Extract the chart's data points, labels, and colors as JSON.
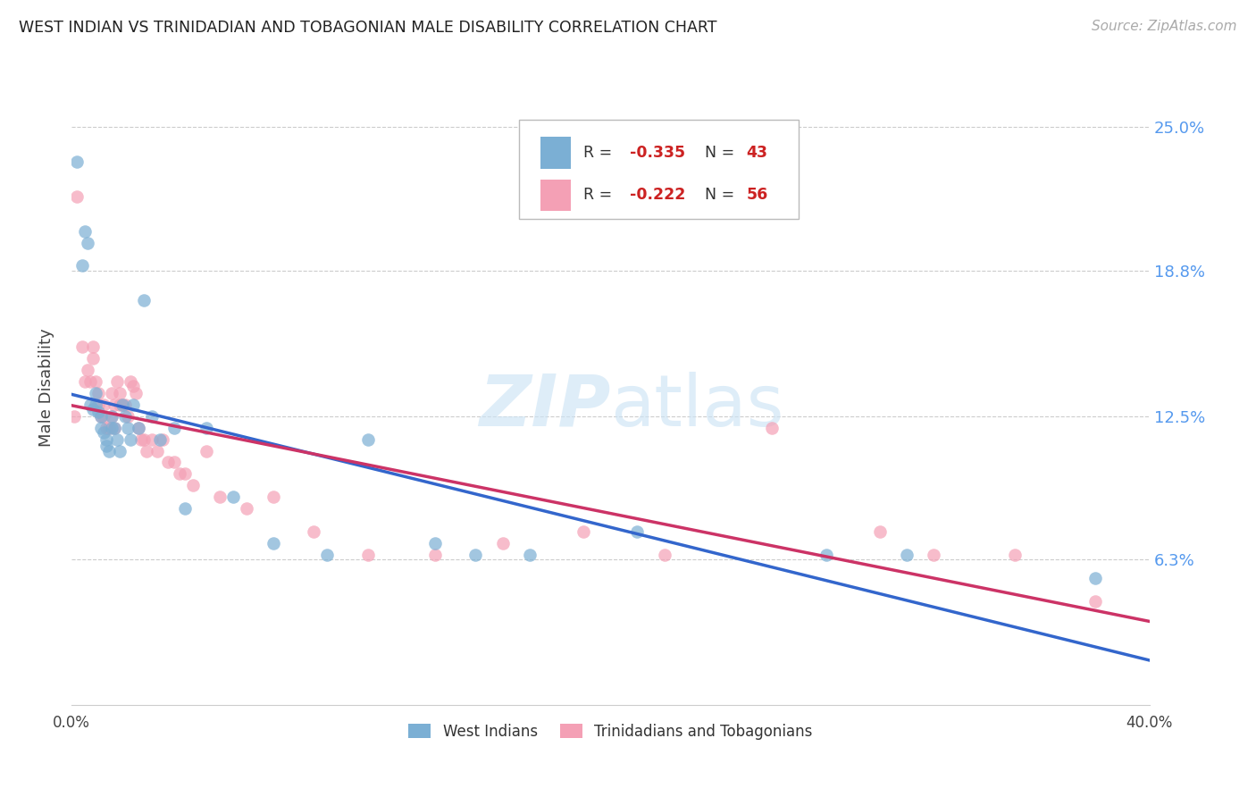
{
  "title": "WEST INDIAN VS TRINIDADIAN AND TOBAGONIAN MALE DISABILITY CORRELATION CHART",
  "source": "Source: ZipAtlas.com",
  "ylabel": "Male Disability",
  "right_yticks": [
    "25.0%",
    "18.8%",
    "12.5%",
    "6.3%"
  ],
  "right_ytick_vals": [
    0.25,
    0.188,
    0.125,
    0.063
  ],
  "xmin": 0.0,
  "xmax": 0.4,
  "ymin": 0.0,
  "ymax": 0.275,
  "west_indians_R": "-0.335",
  "west_indians_N": "43",
  "trini_R": "-0.222",
  "trini_N": "56",
  "blue_color": "#7bafd4",
  "pink_color": "#f4a0b5",
  "blue_line_color": "#3366cc",
  "pink_line_color": "#cc3366",
  "west_indians_x": [
    0.002,
    0.004,
    0.005,
    0.006,
    0.007,
    0.008,
    0.009,
    0.009,
    0.01,
    0.011,
    0.011,
    0.012,
    0.013,
    0.013,
    0.014,
    0.015,
    0.015,
    0.016,
    0.017,
    0.018,
    0.019,
    0.02,
    0.021,
    0.022,
    0.023,
    0.025,
    0.027,
    0.03,
    0.033,
    0.038,
    0.042,
    0.05,
    0.06,
    0.075,
    0.095,
    0.11,
    0.135,
    0.15,
    0.17,
    0.21,
    0.28,
    0.31,
    0.38
  ],
  "west_indians_y": [
    0.235,
    0.19,
    0.205,
    0.2,
    0.13,
    0.128,
    0.135,
    0.13,
    0.127,
    0.125,
    0.12,
    0.118,
    0.115,
    0.112,
    0.11,
    0.125,
    0.12,
    0.12,
    0.115,
    0.11,
    0.13,
    0.125,
    0.12,
    0.115,
    0.13,
    0.12,
    0.175,
    0.125,
    0.115,
    0.12,
    0.085,
    0.12,
    0.09,
    0.07,
    0.065,
    0.115,
    0.07,
    0.065,
    0.065,
    0.075,
    0.065,
    0.065,
    0.055
  ],
  "trini_x": [
    0.001,
    0.002,
    0.004,
    0.005,
    0.006,
    0.007,
    0.008,
    0.008,
    0.009,
    0.01,
    0.01,
    0.011,
    0.012,
    0.012,
    0.013,
    0.014,
    0.015,
    0.015,
    0.016,
    0.016,
    0.017,
    0.018,
    0.018,
    0.019,
    0.02,
    0.021,
    0.022,
    0.023,
    0.024,
    0.025,
    0.026,
    0.027,
    0.028,
    0.03,
    0.032,
    0.034,
    0.036,
    0.038,
    0.04,
    0.042,
    0.045,
    0.05,
    0.055,
    0.065,
    0.075,
    0.09,
    0.11,
    0.135,
    0.16,
    0.19,
    0.22,
    0.26,
    0.3,
    0.32,
    0.35,
    0.38
  ],
  "trini_y": [
    0.125,
    0.22,
    0.155,
    0.14,
    0.145,
    0.14,
    0.155,
    0.15,
    0.14,
    0.135,
    0.13,
    0.125,
    0.13,
    0.125,
    0.12,
    0.12,
    0.135,
    0.125,
    0.13,
    0.12,
    0.14,
    0.135,
    0.13,
    0.13,
    0.13,
    0.125,
    0.14,
    0.138,
    0.135,
    0.12,
    0.115,
    0.115,
    0.11,
    0.115,
    0.11,
    0.115,
    0.105,
    0.105,
    0.1,
    0.1,
    0.095,
    0.11,
    0.09,
    0.085,
    0.09,
    0.075,
    0.065,
    0.065,
    0.07,
    0.075,
    0.065,
    0.12,
    0.075,
    0.065,
    0.065,
    0.045
  ]
}
